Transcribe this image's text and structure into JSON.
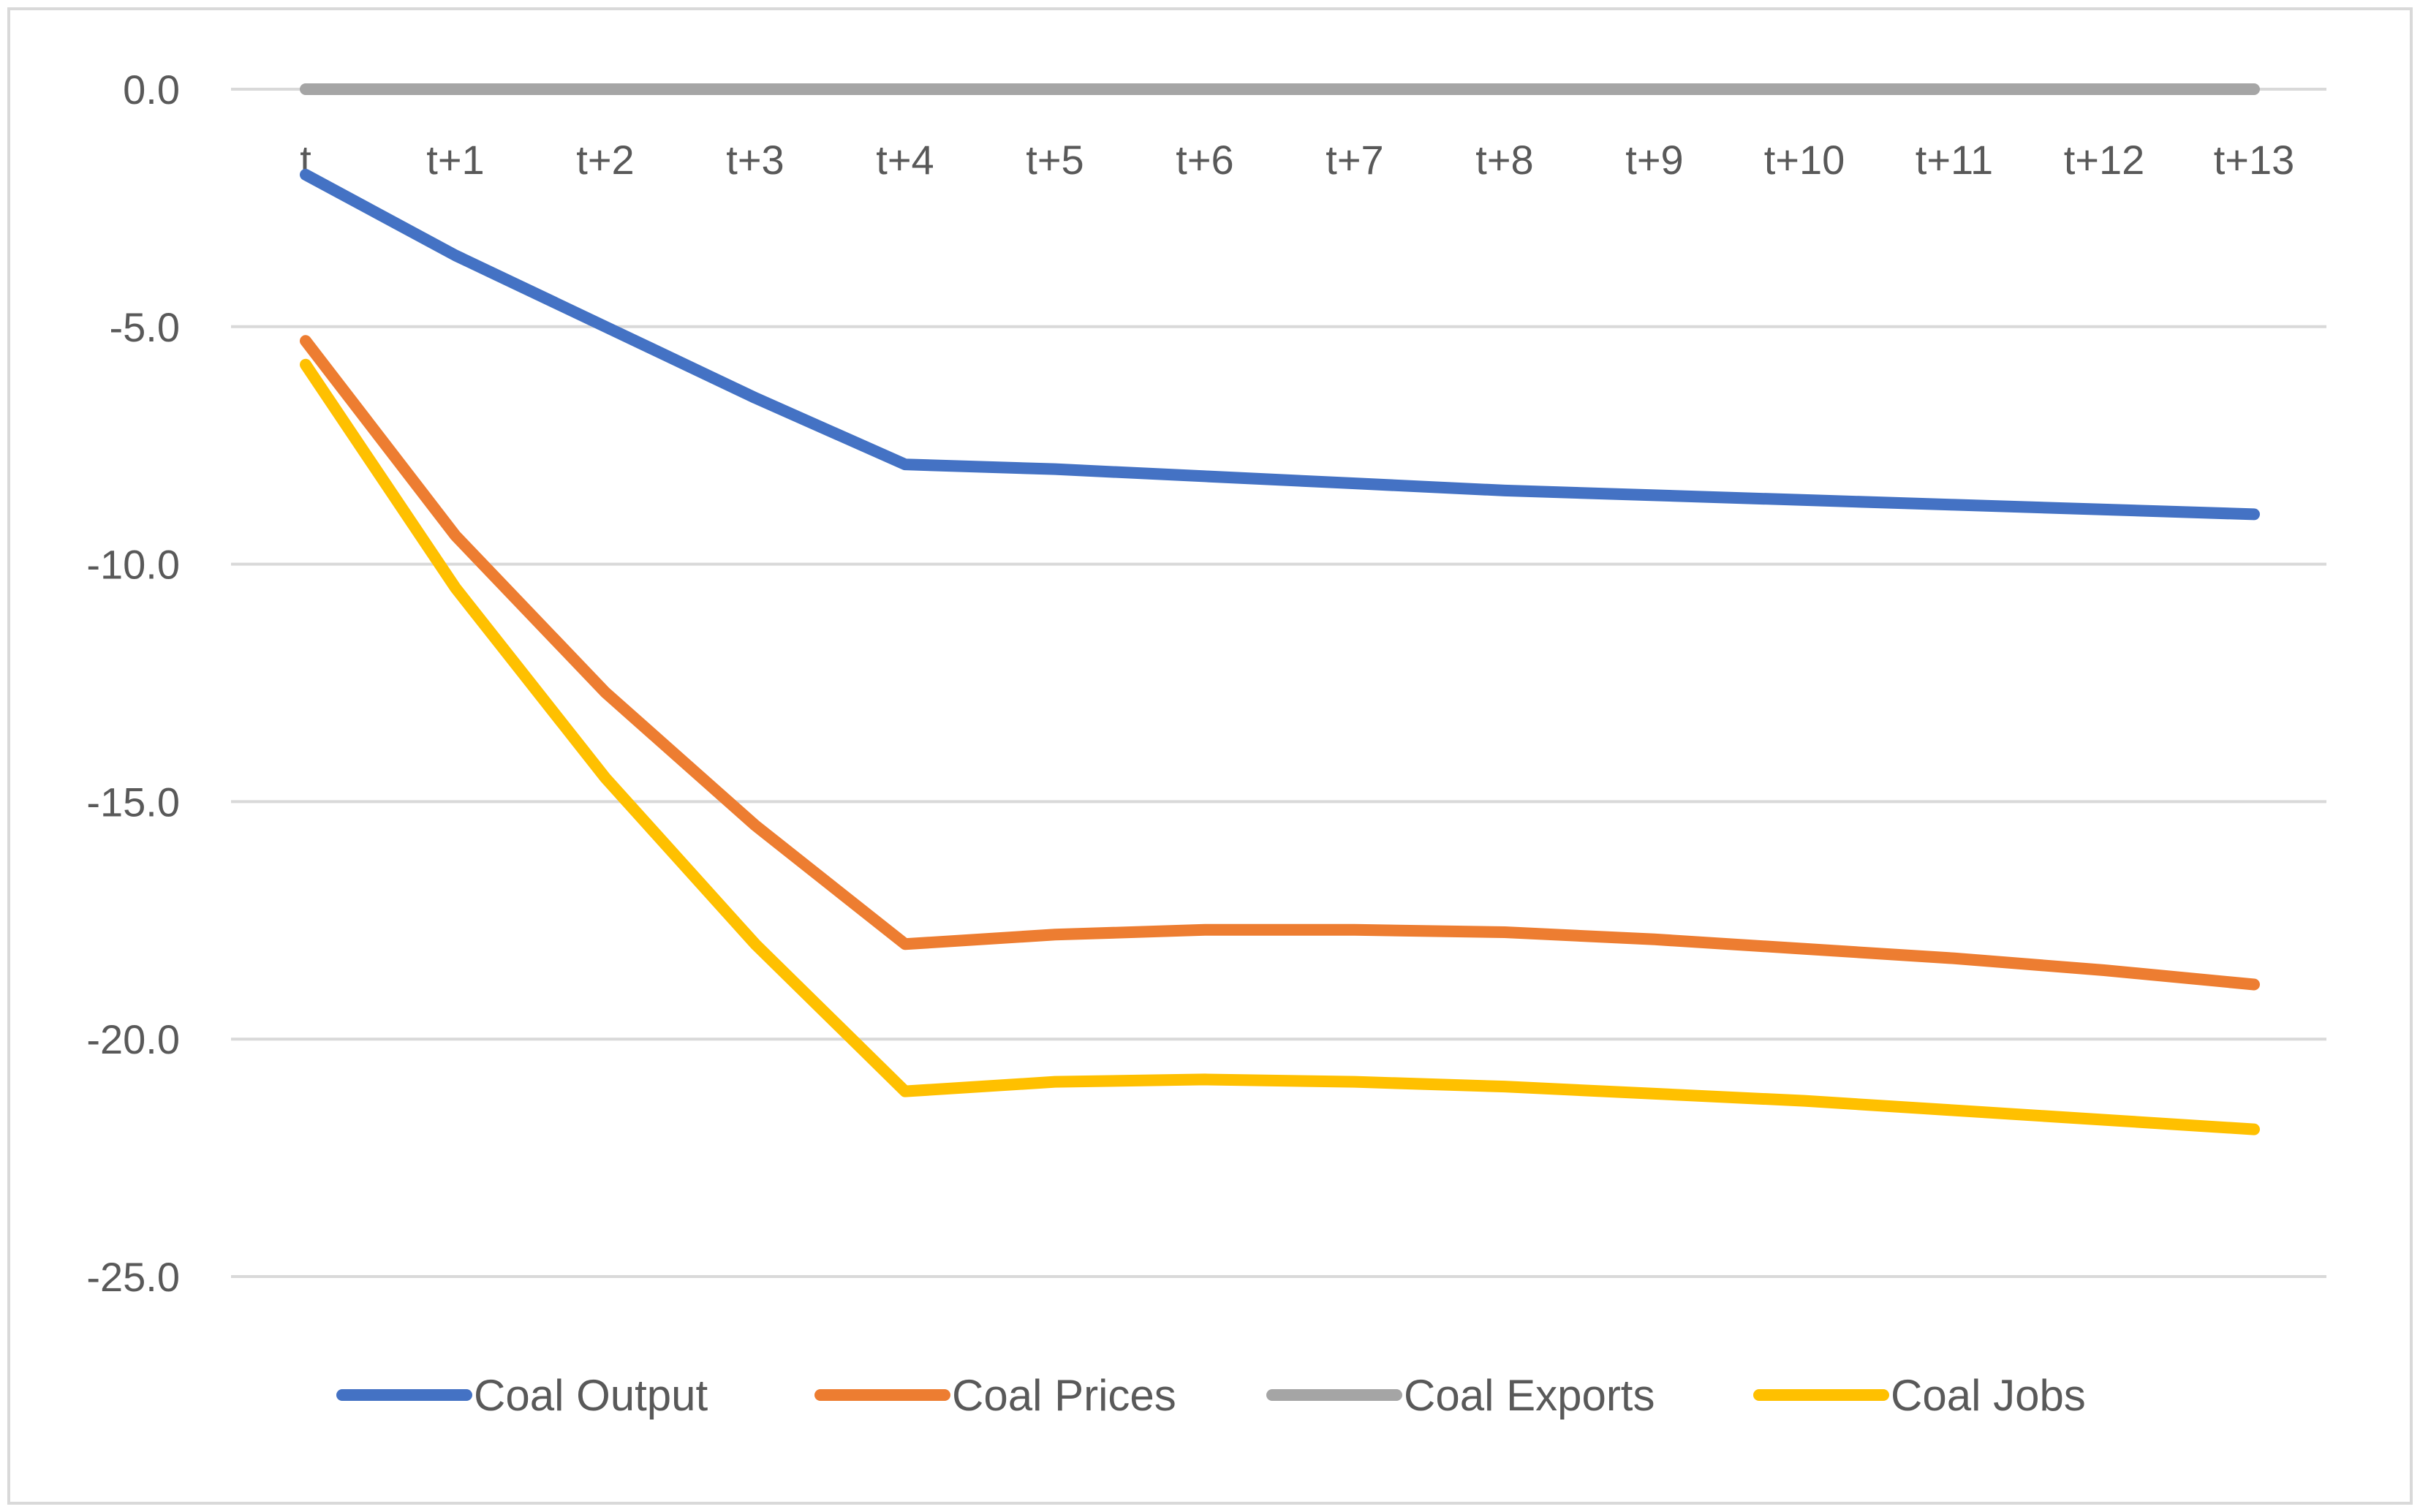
{
  "chart_data": {
    "type": "line",
    "title": "",
    "xlabel": "",
    "ylabel": "",
    "ylim": [
      -25,
      0
    ],
    "yticks": [
      0,
      -5,
      -10,
      -15,
      -20,
      -25
    ],
    "ytick_labels": [
      "0.0",
      "-5.0",
      "-10.0",
      "-15.0",
      "-20.0",
      "-25.0"
    ],
    "grid": true,
    "legend_position": "bottom",
    "categories": [
      "t",
      "t+1",
      "t+2",
      "t+3",
      "t+4",
      "t+5",
      "t+6",
      "t+7",
      "t+8",
      "t+9",
      "t+10",
      "t+11",
      "t+12",
      "t+13"
    ],
    "series": [
      {
        "name": "Coal Output",
        "color": "#4472c4",
        "values": [
          -1.8,
          -3.5,
          -5.0,
          -6.5,
          -7.9,
          -8.0,
          -8.15,
          -8.3,
          -8.45,
          -8.55,
          -8.65,
          -8.75,
          -8.85,
          -8.95
        ]
      },
      {
        "name": "Coal Prices",
        "color": "#ed7d31",
        "values": [
          -5.3,
          -9.4,
          -12.7,
          -15.5,
          -18.0,
          -17.8,
          -17.7,
          -17.7,
          -17.75,
          -17.9,
          -18.1,
          -18.3,
          -18.55,
          -18.85
        ]
      },
      {
        "name": "Coal Exports",
        "color": "#a5a5a5",
        "values": [
          0,
          0,
          0,
          0,
          0,
          0,
          0,
          0,
          0,
          0,
          0,
          0,
          0,
          0
        ]
      },
      {
        "name": "Coal Jobs",
        "color": "#ffc000",
        "values": [
          -5.8,
          -10.5,
          -14.5,
          -18.0,
          -21.1,
          -20.9,
          -20.85,
          -20.9,
          -21.0,
          -21.15,
          -21.3,
          -21.5,
          -21.7,
          -21.9
        ]
      }
    ]
  }
}
